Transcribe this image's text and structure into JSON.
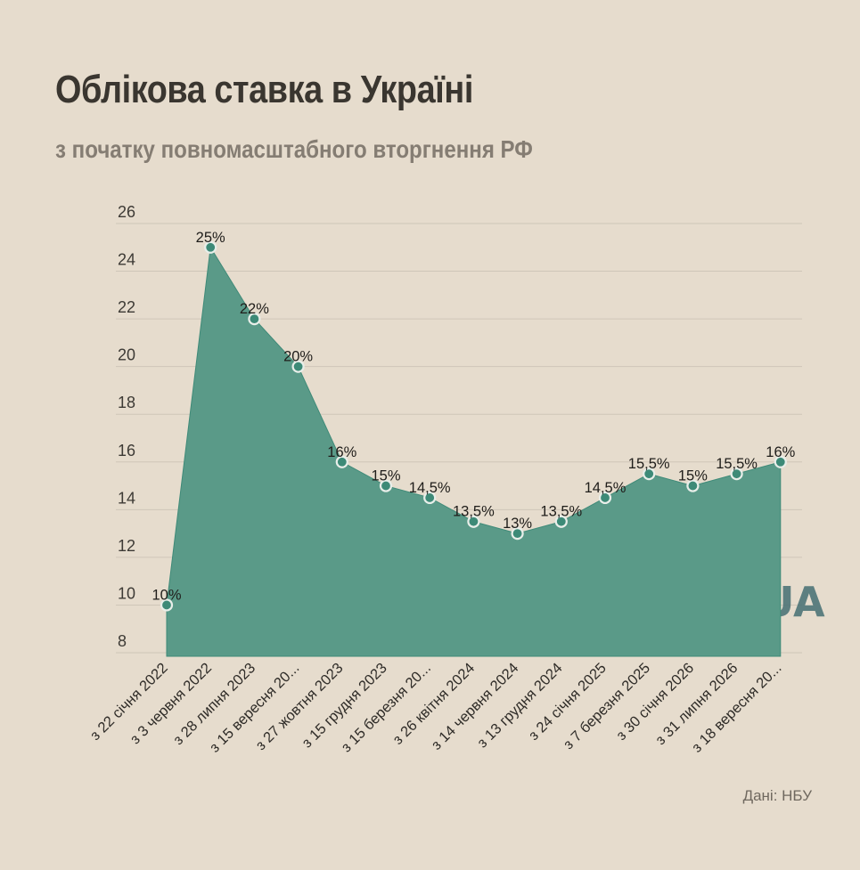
{
  "header": {
    "title": "Облікова ставка в Україні",
    "subtitle": "з початку повномасштабного вторгнення РФ"
  },
  "footer": {
    "source": "Дані: НБУ"
  },
  "watermark": {
    "text": "OBOZ.UA",
    "icon": "globe-icon",
    "color": "#466f73"
  },
  "colors": {
    "area_fill": "#5a9a88",
    "area_stroke": "#3f8a78",
    "point_fill": "#3d8a77",
    "point_stroke": "#e8eee9",
    "grid": "#cfc6b8"
  },
  "chart_data": {
    "type": "area",
    "title": "Облікова ставка в Україні",
    "subtitle": "з початку повномасштабного вторгнення РФ",
    "xlabel": "",
    "ylabel": "",
    "ylim": [
      8,
      26
    ],
    "yticks": [
      8,
      10,
      12,
      14,
      16,
      18,
      20,
      22,
      24,
      26
    ],
    "grid": true,
    "legend": "none",
    "categories": [
      "з 22 січня 2022",
      "з 3 червня 2022",
      "з 28 липня 2023",
      "з 15 вересня 20...",
      "з 27 жовтня 2023",
      "з 15 грудня 2023",
      "з 15 березня 20...",
      "з 26 квітня 2024",
      "з 14 червня 2024",
      "з 13 грудня 2024",
      "з 24 січня 2025",
      "з 7 березня 2025",
      "з 30 січня 2026",
      "з 31 липня 2026",
      "з 18 вересня 20..."
    ],
    "values": [
      10,
      25,
      22,
      20,
      16,
      15,
      14.5,
      13.5,
      13,
      13.5,
      14.5,
      15.5,
      15,
      15.5,
      16
    ],
    "data_labels": [
      "10%",
      "25%",
      "22%",
      "20%",
      "16%",
      "15%",
      "14,5%",
      "13,5%",
      "13%",
      "13,5%",
      "14,5%",
      "15,5%",
      "15%",
      "15,5%",
      "16%"
    ]
  }
}
